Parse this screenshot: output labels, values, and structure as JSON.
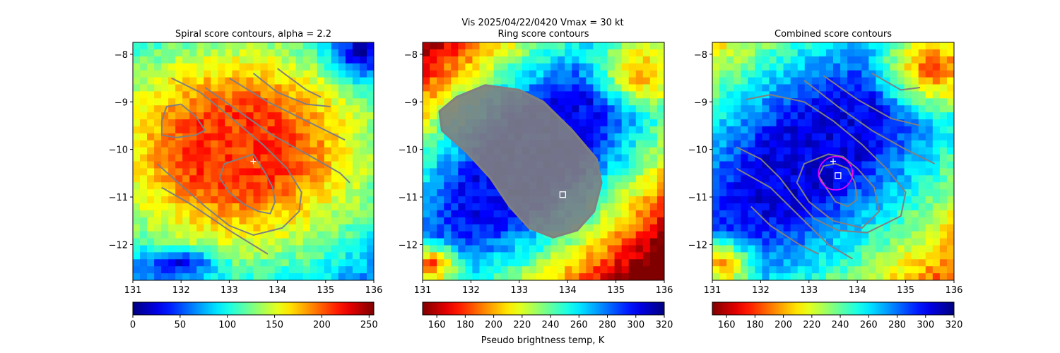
{
  "suptitle": {
    "line1": "Vis  2025/04/22/0420    Vmax = 30 kt",
    "line2": "Ring score contours"
  },
  "colorbar_label": "Pseudo brightness temp, K",
  "chart_data": [
    {
      "type": "heatmap",
      "title": "Spiral score contours, alpha =  2.2",
      "xlim": [
        131,
        136
      ],
      "ylim": [
        -12.75,
        -7.75
      ],
      "xticks": [
        "131",
        "132",
        "133",
        "134",
        "135",
        "136"
      ],
      "yticks": [
        "-8",
        "-9",
        "-10",
        "-11",
        "-12"
      ],
      "colormap": "jet",
      "colorbar": {
        "range": [
          0,
          255
        ],
        "ticks": [
          "0",
          "50",
          "100",
          "150",
          "200",
          "250"
        ],
        "reversed": false
      },
      "field": "bright-background-dark-core",
      "markers": [
        {
          "type": "plus",
          "lon": 133.5,
          "lat": -10.25,
          "color": "#ffffff"
        }
      ],
      "contour_color": "#808080",
      "contours": [
        [
          [
            131.6,
            -9.7
          ],
          [
            131.9,
            -9.75
          ],
          [
            132.3,
            -9.7
          ],
          [
            132.5,
            -9.6
          ],
          [
            132.3,
            -9.3
          ],
          [
            132.0,
            -9.05
          ],
          [
            131.7,
            -9.1
          ],
          [
            131.6,
            -9.4
          ]
        ],
        [
          [
            133.5,
            -10.1
          ],
          [
            132.9,
            -10.3
          ],
          [
            132.8,
            -10.6
          ],
          [
            133.0,
            -10.9
          ],
          [
            133.3,
            -11.15
          ],
          [
            133.6,
            -11.3
          ],
          [
            133.85,
            -11.35
          ],
          [
            133.95,
            -11.1
          ],
          [
            133.9,
            -10.8
          ],
          [
            133.75,
            -10.5
          ]
        ],
        [
          [
            131.8,
            -8.5
          ],
          [
            132.4,
            -8.8
          ],
          [
            133.0,
            -9.3
          ],
          [
            133.7,
            -9.9
          ],
          [
            134.2,
            -10.4
          ],
          [
            134.5,
            -10.9
          ],
          [
            134.45,
            -11.3
          ],
          [
            134.1,
            -11.65
          ],
          [
            133.5,
            -11.8
          ],
          [
            133.0,
            -11.6
          ],
          [
            132.5,
            -11.2
          ],
          [
            132.0,
            -10.75
          ],
          [
            131.5,
            -10.3
          ]
        ],
        [
          [
            132.5,
            -8.7
          ],
          [
            133.2,
            -9.2
          ],
          [
            133.9,
            -9.7
          ],
          [
            134.7,
            -10.15
          ],
          [
            135.3,
            -10.5
          ],
          [
            135.5,
            -10.7
          ]
        ],
        [
          [
            133.0,
            -8.5
          ],
          [
            133.8,
            -9.0
          ],
          [
            134.6,
            -9.4
          ],
          [
            135.4,
            -9.8
          ]
        ],
        [
          [
            133.5,
            -8.4
          ],
          [
            134.0,
            -8.8
          ],
          [
            134.6,
            -9.05
          ],
          [
            135.1,
            -9.1
          ]
        ],
        [
          [
            134.0,
            -8.3
          ],
          [
            134.6,
            -8.75
          ],
          [
            134.9,
            -8.9
          ]
        ],
        [
          [
            131.6,
            -10.8
          ],
          [
            132.2,
            -11.15
          ],
          [
            133.0,
            -11.7
          ],
          [
            133.8,
            -12.2
          ]
        ]
      ]
    },
    {
      "type": "heatmap",
      "title": "Ring score contours",
      "xlim": [
        131,
        136
      ],
      "ylim": [
        -12.75,
        -7.75
      ],
      "xticks": [
        "131",
        "132",
        "133",
        "134",
        "135",
        "136"
      ],
      "yticks": [
        "-8",
        "-9",
        "-10",
        "-11",
        "-12"
      ],
      "colormap": "jet",
      "colorbar": {
        "range": [
          150,
          320
        ],
        "ticks": [
          "160",
          "180",
          "200",
          "220",
          "240",
          "260",
          "280",
          "300",
          "320"
        ],
        "reversed": true
      },
      "field": "cold-cloud-band",
      "markers": [
        {
          "type": "square",
          "lon": 133.9,
          "lat": -10.95,
          "color": "#ffffff"
        }
      ],
      "contour_color": "#808080",
      "fill_region": [
        [
          132.3,
          -8.65
        ],
        [
          133.0,
          -8.75
        ],
        [
          133.5,
          -9.0
        ],
        [
          134.1,
          -9.6
        ],
        [
          134.6,
          -10.2
        ],
        [
          134.7,
          -10.7
        ],
        [
          134.55,
          -11.3
        ],
        [
          134.2,
          -11.7
        ],
        [
          133.7,
          -11.85
        ],
        [
          133.2,
          -11.65
        ],
        [
          132.8,
          -11.2
        ],
        [
          132.4,
          -10.6
        ],
        [
          131.9,
          -10.05
        ],
        [
          131.4,
          -9.6
        ],
        [
          131.35,
          -9.2
        ],
        [
          131.7,
          -8.9
        ]
      ],
      "contours": []
    },
    {
      "type": "heatmap",
      "title": "Combined score contours",
      "xlim": [
        131,
        136
      ],
      "ylim": [
        -12.75,
        -7.75
      ],
      "xticks": [
        "131",
        "132",
        "133",
        "134",
        "135",
        "136"
      ],
      "yticks": [
        "-8",
        "-9",
        "-10",
        "-11",
        "-12"
      ],
      "colormap": "jet",
      "colorbar": {
        "range": [
          150,
          320
        ],
        "ticks": [
          "160",
          "180",
          "200",
          "220",
          "240",
          "260",
          "280",
          "300",
          "320"
        ],
        "reversed": true
      },
      "field": "warm-core",
      "markers": [
        {
          "type": "plus",
          "lon": 133.5,
          "lat": -10.25,
          "color": "#ffffff"
        },
        {
          "type": "square",
          "lon": 133.6,
          "lat": -10.55,
          "color": "#ffffff"
        },
        {
          "type": "circle",
          "lon": 133.55,
          "lat": -10.5,
          "radius": 0.35,
          "color": "#ff00ff"
        }
      ],
      "contour_color": "#808080",
      "contours": [
        [
          [
            133.3,
            -10.35
          ],
          [
            133.2,
            -10.55
          ],
          [
            133.35,
            -10.8
          ],
          [
            133.55,
            -11.1
          ],
          [
            133.8,
            -11.2
          ],
          [
            134.0,
            -11.05
          ],
          [
            133.95,
            -10.7
          ],
          [
            133.8,
            -10.4
          ],
          [
            133.55,
            -10.3
          ]
        ],
        [
          [
            133.4,
            -10.1
          ],
          [
            132.9,
            -10.3
          ],
          [
            132.75,
            -10.7
          ],
          [
            133.0,
            -11.1
          ],
          [
            133.5,
            -11.5
          ],
          [
            134.1,
            -11.65
          ],
          [
            134.45,
            -11.3
          ],
          [
            134.35,
            -10.8
          ],
          [
            134.0,
            -10.4
          ],
          [
            133.7,
            -10.15
          ]
        ],
        [
          [
            131.5,
            -9.95
          ],
          [
            132.0,
            -10.2
          ],
          [
            132.4,
            -10.6
          ],
          [
            132.7,
            -11.0
          ],
          [
            133.1,
            -11.45
          ],
          [
            133.6,
            -11.7
          ],
          [
            134.2,
            -11.75
          ],
          [
            134.9,
            -11.4
          ],
          [
            135.0,
            -10.9
          ],
          [
            134.6,
            -10.4
          ],
          [
            134.1,
            -9.9
          ],
          [
            133.5,
            -9.4
          ],
          [
            132.9,
            -9.0
          ],
          [
            132.2,
            -8.85
          ],
          [
            131.7,
            -8.95
          ]
        ],
        [
          [
            131.5,
            -10.4
          ],
          [
            132.2,
            -10.8
          ],
          [
            132.8,
            -11.4
          ],
          [
            133.4,
            -12.0
          ],
          [
            133.9,
            -12.3
          ]
        ],
        [
          [
            131.8,
            -11.2
          ],
          [
            132.2,
            -11.6
          ],
          [
            132.8,
            -12.0
          ],
          [
            133.2,
            -12.2
          ]
        ],
        [
          [
            132.9,
            -8.55
          ],
          [
            133.6,
            -9.1
          ],
          [
            134.3,
            -9.6
          ],
          [
            135.0,
            -10.0
          ],
          [
            135.6,
            -10.3
          ]
        ],
        [
          [
            133.3,
            -8.45
          ],
          [
            134.0,
            -8.95
          ],
          [
            134.7,
            -9.35
          ],
          [
            135.3,
            -9.5
          ]
        ],
        [
          [
            134.3,
            -8.4
          ],
          [
            134.9,
            -8.75
          ],
          [
            135.3,
            -8.7
          ]
        ]
      ]
    }
  ]
}
